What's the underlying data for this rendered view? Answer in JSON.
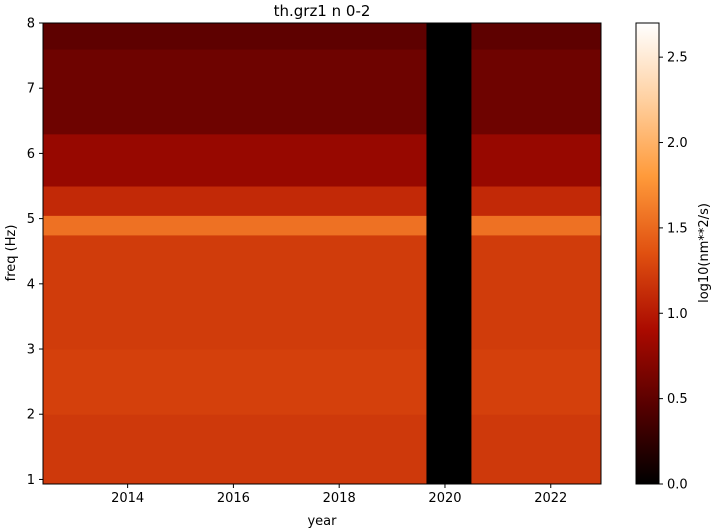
{
  "chart_data": {
    "type": "heatmap",
    "title": "th.grz1 n 0-2",
    "xlabel": "year",
    "ylabel": "freq (Hz)",
    "colorbar_label": "log10(nm**2/s)",
    "colormap": "gist_heat",
    "colormap_stops": [
      "#000000",
      "#550000",
      "#aa0a00",
      "#e05010",
      "#ff9a3a",
      "#ffd0a0",
      "#ffffff"
    ],
    "xlim": [
      2012.4,
      2022.95
    ],
    "ylim": [
      0.93,
      8.0
    ],
    "x_ticks": [
      {
        "value": 2014,
        "label": "2014"
      },
      {
        "value": 2016,
        "label": "2016"
      },
      {
        "value": 2018,
        "label": "2018"
      },
      {
        "value": 2020,
        "label": "2020"
      },
      {
        "value": 2022,
        "label": "2022"
      }
    ],
    "y_ticks": [
      {
        "value": 1,
        "label": "1"
      },
      {
        "value": 2,
        "label": "2"
      },
      {
        "value": 3,
        "label": "3"
      },
      {
        "value": 4,
        "label": "4"
      },
      {
        "value": 5,
        "label": "5"
      },
      {
        "value": 6,
        "label": "6"
      },
      {
        "value": 7,
        "label": "7"
      },
      {
        "value": 8,
        "label": "8"
      }
    ],
    "color_range": [
      0.0,
      2.7
    ],
    "colorbar_ticks": [
      {
        "value": 0.0,
        "label": "0.0"
      },
      {
        "value": 0.5,
        "label": "0.5"
      },
      {
        "value": 1.0,
        "label": "1.0"
      },
      {
        "value": 1.5,
        "label": "1.5"
      },
      {
        "value": 2.0,
        "label": "2.0"
      },
      {
        "value": 2.5,
        "label": "2.5"
      }
    ],
    "data_gap": {
      "start": 2019.65,
      "end": 2020.5
    },
    "frequency_bands": [
      {
        "freq_range": [
          0.93,
          2.0
        ],
        "level": 1.2
      },
      {
        "freq_range": [
          2.0,
          3.0
        ],
        "level": 1.25
      },
      {
        "freq_range": [
          3.0,
          4.75
        ],
        "level": 1.22
      },
      {
        "freq_range": [
          4.75,
          5.05
        ],
        "level": 1.55
      },
      {
        "freq_range": [
          5.05,
          5.5
        ],
        "level": 1.1
      },
      {
        "freq_range": [
          5.5,
          6.3
        ],
        "level": 0.8
      },
      {
        "freq_range": [
          6.3,
          7.6
        ],
        "level": 0.58
      },
      {
        "freq_range": [
          7.6,
          8.0
        ],
        "level": 0.5
      }
    ]
  }
}
